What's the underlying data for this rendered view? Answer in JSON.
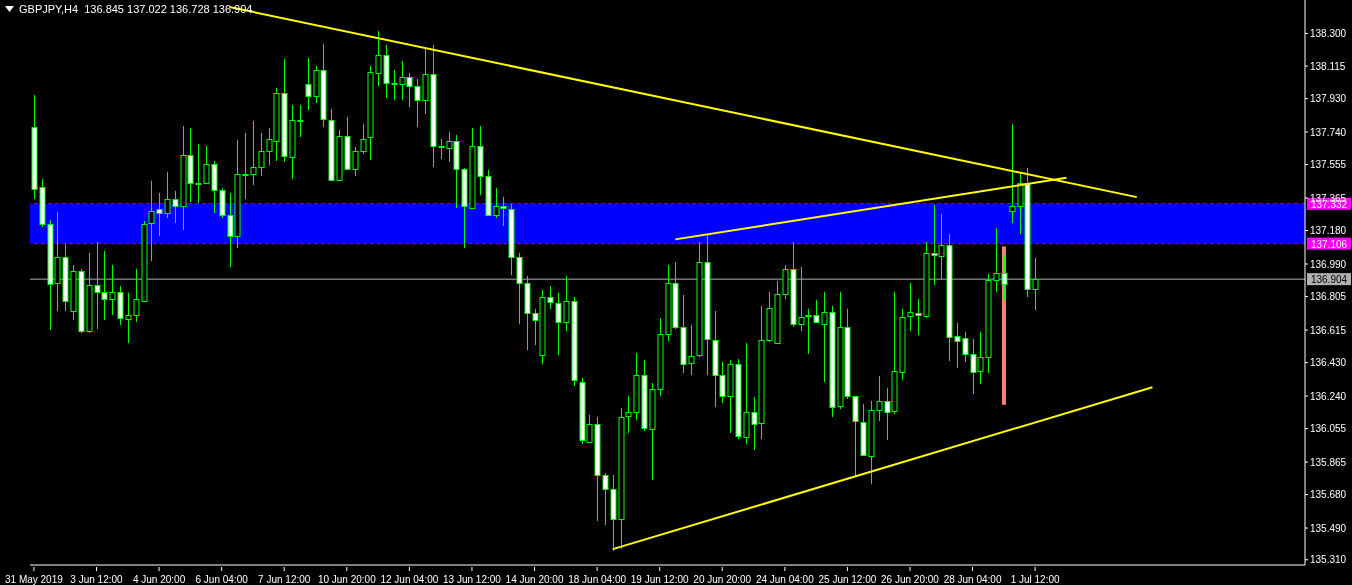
{
  "chart_data": {
    "type": "candlestick",
    "title": "GBPJPY,H4  136.845 137.022 136.728 136.904",
    "color": "#00ff00",
    "categories": [
      "31 May 2019",
      null,
      null,
      null,
      null,
      null,
      null,
      null,
      "3 Jun 12:00",
      null,
      null,
      null,
      null,
      null,
      null,
      null,
      "4 Jun 20:00",
      null,
      null,
      null,
      null,
      null,
      null,
      null,
      "6 Jun 04:00",
      null,
      null,
      null,
      null,
      null,
      null,
      null,
      "7 Jun 12:00",
      null,
      null,
      null,
      null,
      null,
      null,
      null,
      "10 Jun 20:00",
      null,
      null,
      null,
      null,
      null,
      null,
      null,
      "12 Jun 04:00",
      null,
      null,
      null,
      null,
      null,
      null,
      null,
      "13 Jun 12:00",
      null,
      null,
      null,
      null,
      null,
      null,
      null,
      "14 Jun 20:00",
      null,
      null,
      null,
      null,
      null,
      null,
      null,
      "18 Jun 04:00",
      null,
      null,
      null,
      null,
      null,
      null,
      null,
      "19 Jun 12:00",
      null,
      null,
      null,
      null,
      null,
      null,
      null,
      "20 Jun 20:00",
      null,
      null,
      null,
      null,
      null,
      null,
      null,
      "24 Jun 04:00",
      null,
      null,
      null,
      null,
      null,
      null,
      null,
      "25 Jun 12:00",
      null,
      null,
      null,
      null,
      null,
      null,
      null,
      "26 Jun 20:00",
      null,
      null,
      null,
      null,
      null,
      null,
      null,
      "28 Jun 04:00",
      null,
      null,
      null,
      null,
      null,
      null,
      null,
      "1 Jul 12:00",
      null,
      null,
      null,
      null,
      null,
      null,
      null,
      null,
      null,
      null,
      null,
      null,
      null,
      null,
      null,
      null,
      null,
      null,
      null,
      null,
      null,
      null,
      null,
      null,
      null,
      null,
      null,
      null,
      null,
      null,
      null,
      null,
      null,
      null
    ],
    "ohlc": [
      [
        137.77,
        137.95,
        137.36,
        137.42
      ],
      [
        137.43,
        137.47,
        137.2,
        137.22
      ],
      [
        137.22,
        137.24,
        136.62,
        136.88
      ],
      [
        136.88,
        137.28,
        136.72,
        137.03
      ],
      [
        137.03,
        137.1,
        136.72,
        136.78
      ],
      [
        136.72,
        136.98,
        136.67,
        136.95
      ],
      [
        136.95,
        136.96,
        136.6,
        136.61
      ],
      [
        136.61,
        137.05,
        136.6,
        136.87
      ],
      [
        136.87,
        137.11,
        136.62,
        136.83
      ],
      [
        136.83,
        137.06,
        136.67,
        136.79
      ],
      [
        136.79,
        136.98,
        136.7,
        136.83
      ],
      [
        136.83,
        136.86,
        136.64,
        136.68
      ],
      [
        136.68,
        136.82,
        136.54,
        136.7
      ],
      [
        136.7,
        136.96,
        136.66,
        136.79
      ],
      [
        136.78,
        137.23,
        136.77,
        137.22
      ],
      [
        137.22,
        137.46,
        137.01,
        137.29
      ],
      [
        137.3,
        137.39,
        137.15,
        137.28
      ],
      [
        137.28,
        137.51,
        137.25,
        137.36
      ],
      [
        137.36,
        137.4,
        137.22,
        137.32
      ],
      [
        137.32,
        137.77,
        137.18,
        137.61
      ],
      [
        137.61,
        137.76,
        137.34,
        137.45
      ],
      [
        137.45,
        137.67,
        137.34,
        137.45
      ],
      [
        137.45,
        137.66,
        137.45,
        137.56
      ],
      [
        137.56,
        137.57,
        137.28,
        137.41
      ],
      [
        137.41,
        137.42,
        137.25,
        137.27
      ],
      [
        137.27,
        137.39,
        136.97,
        137.15
      ],
      [
        137.15,
        137.69,
        137.08,
        137.5
      ],
      [
        137.5,
        137.73,
        137.36,
        137.5
      ],
      [
        137.5,
        137.8,
        137.44,
        137.54
      ],
      [
        137.54,
        137.73,
        137.49,
        137.63
      ],
      [
        137.63,
        137.76,
        137.55,
        137.7
      ],
      [
        137.69,
        137.99,
        137.58,
        137.96
      ],
      [
        137.96,
        138.15,
        137.57,
        137.6
      ],
      [
        137.6,
        137.89,
        137.47,
        137.81
      ],
      [
        137.81,
        137.89,
        137.71,
        137.81
      ],
      [
        138.01,
        138.16,
        137.87,
        137.94
      ],
      [
        137.94,
        138.11,
        137.9,
        138.09
      ],
      [
        138.09,
        138.24,
        137.77,
        137.81
      ],
      [
        137.81,
        137.87,
        137.47,
        137.47
      ],
      [
        137.47,
        137.75,
        137.47,
        137.72
      ],
      [
        137.72,
        137.82,
        137.52,
        137.53
      ],
      [
        137.53,
        137.65,
        137.49,
        137.63
      ],
      [
        137.63,
        137.78,
        137.61,
        137.7
      ],
      [
        137.71,
        138.11,
        137.58,
        138.08
      ],
      [
        138.08,
        138.31,
        138.0,
        138.18
      ],
      [
        138.18,
        138.23,
        137.93,
        138.02
      ],
      [
        138.02,
        138.09,
        137.92,
        138.02
      ],
      [
        138.01,
        138.14,
        137.92,
        138.05
      ],
      [
        138.05,
        138.07,
        137.88,
        138.0
      ],
      [
        138.0,
        138.04,
        137.77,
        137.92
      ],
      [
        137.92,
        138.22,
        137.84,
        138.07
      ],
      [
        138.07,
        138.23,
        137.54,
        137.66
      ],
      [
        137.66,
        137.7,
        137.59,
        137.66
      ],
      [
        137.65,
        137.74,
        137.57,
        137.69
      ],
      [
        137.69,
        137.72,
        137.31,
        137.53
      ],
      [
        137.53,
        137.53,
        137.08,
        137.32
      ],
      [
        137.31,
        137.76,
        137.31,
        137.66
      ],
      [
        137.66,
        137.77,
        137.38,
        137.49
      ],
      [
        137.49,
        137.52,
        137.27,
        137.27
      ],
      [
        137.27,
        137.42,
        137.25,
        137.32
      ],
      [
        137.32,
        137.37,
        137.21,
        137.31
      ],
      [
        137.3,
        137.33,
        136.93,
        137.03
      ],
      [
        137.03,
        137.05,
        136.65,
        136.88
      ],
      [
        136.88,
        136.92,
        136.5,
        136.71
      ],
      [
        136.71,
        136.73,
        136.53,
        136.67
      ],
      [
        136.47,
        136.84,
        136.42,
        136.8
      ],
      [
        136.8,
        136.86,
        136.73,
        136.77
      ],
      [
        136.77,
        136.82,
        136.47,
        136.66
      ],
      [
        136.66,
        136.92,
        136.61,
        136.78
      ],
      [
        136.78,
        136.8,
        136.3,
        136.33
      ],
      [
        136.32,
        136.34,
        135.97,
        135.99
      ],
      [
        135.98,
        136.13,
        135.98,
        136.08
      ],
      [
        136.08,
        136.12,
        135.53,
        135.79
      ],
      [
        135.79,
        135.8,
        135.51,
        135.71
      ],
      [
        135.71,
        135.79,
        135.36,
        135.54
      ],
      [
        135.54,
        136.17,
        135.37,
        136.12
      ],
      [
        136.13,
        136.24,
        136.03,
        136.15
      ],
      [
        136.15,
        136.48,
        136.1,
        136.36
      ],
      [
        136.36,
        136.44,
        136.04,
        136.06
      ],
      [
        136.05,
        136.31,
        135.76,
        136.28
      ],
      [
        136.28,
        136.68,
        136.24,
        136.59
      ],
      [
        136.59,
        136.98,
        136.55,
        136.88
      ],
      [
        136.88,
        137.0,
        136.62,
        136.63
      ],
      [
        136.63,
        136.81,
        136.37,
        136.42
      ],
      [
        136.43,
        136.64,
        136.36,
        136.47
      ],
      [
        136.47,
        137.11,
        136.46,
        137.0
      ],
      [
        137.0,
        137.16,
        136.36,
        136.56
      ],
      [
        136.56,
        136.72,
        136.18,
        136.36
      ],
      [
        136.36,
        136.43,
        136.2,
        136.24
      ],
      [
        136.24,
        136.44,
        136.03,
        136.42
      ],
      [
        136.42,
        136.45,
        136.0,
        136.01
      ],
      [
        136.01,
        136.54,
        135.97,
        136.15
      ],
      [
        136.15,
        136.23,
        135.93,
        136.08
      ],
      [
        136.09,
        136.75,
        136.0,
        136.56
      ],
      [
        136.56,
        136.83,
        136.55,
        136.74
      ],
      [
        136.54,
        136.89,
        136.54,
        136.82
      ],
      [
        136.82,
        136.98,
        136.79,
        136.96
      ],
      [
        136.96,
        137.11,
        136.63,
        136.65
      ],
      [
        136.65,
        136.97,
        136.61,
        136.69
      ],
      [
        136.7,
        136.73,
        136.48,
        136.7
      ],
      [
        136.7,
        136.78,
        136.65,
        136.66
      ],
      [
        136.65,
        136.83,
        136.32,
        136.72
      ],
      [
        136.72,
        136.75,
        136.12,
        136.18
      ],
      [
        136.18,
        136.83,
        136.17,
        136.63
      ],
      [
        136.63,
        136.73,
        136.22,
        136.24
      ],
      [
        136.24,
        136.24,
        135.79,
        136.1
      ],
      [
        136.09,
        136.19,
        135.9,
        135.9
      ],
      [
        135.9,
        136.21,
        135.74,
        136.16
      ],
      [
        136.16,
        136.35,
        136.1,
        136.21
      ],
      [
        136.21,
        136.28,
        135.99,
        136.15
      ],
      [
        136.15,
        136.83,
        136.14,
        136.38
      ],
      [
        136.38,
        136.73,
        136.33,
        136.69
      ],
      [
        136.7,
        136.88,
        136.61,
        136.72
      ],
      [
        136.71,
        136.79,
        136.59,
        136.7
      ],
      [
        136.69,
        137.11,
        136.68,
        137.05
      ],
      [
        137.05,
        137.32,
        136.87,
        137.04
      ],
      [
        137.04,
        137.27,
        136.9,
        137.1
      ],
      [
        137.1,
        137.16,
        136.44,
        136.58
      ],
      [
        136.58,
        136.65,
        136.4,
        136.55
      ],
      [
        136.57,
        136.6,
        136.43,
        136.48
      ],
      [
        136.48,
        136.56,
        136.25,
        136.38
      ],
      [
        136.38,
        136.6,
        136.31,
        136.46
      ],
      [
        136.46,
        136.93,
        136.37,
        136.9
      ],
      [
        136.9,
        137.19,
        136.83,
        136.94
      ],
      [
        136.94,
        137.04,
        136.79,
        136.88
      ],
      [
        137.29,
        137.78,
        137.22,
        137.32
      ],
      [
        137.32,
        137.51,
        137.16,
        137.45
      ],
      [
        137.45,
        137.53,
        136.8,
        136.85
      ],
      [
        136.845,
        137.022,
        136.728,
        136.904
      ],
      null,
      null,
      null,
      null,
      null,
      null,
      null,
      null,
      null,
      null,
      null,
      null,
      null,
      null,
      null,
      null,
      null,
      null,
      null,
      null,
      null,
      null,
      null,
      null,
      null,
      null,
      null,
      null,
      null,
      null,
      null,
      null,
      null,
      null
    ],
    "series": [
      {
        "type": "line",
        "color": "#ffff00",
        "values": [
          null,
          null,
          null,
          null,
          null,
          null,
          null,
          null,
          null,
          null,
          null,
          null,
          null,
          null,
          null,
          null,
          null,
          null,
          null,
          null,
          null,
          null,
          null,
          null,
          null,
          138.45,
          null,
          null,
          null,
          null,
          null,
          null,
          null,
          null,
          null,
          null,
          null,
          null,
          null,
          null,
          null,
          null,
          null,
          null,
          null,
          null,
          null,
          null,
          null,
          null,
          null,
          null,
          null,
          null,
          null,
          null,
          null,
          null,
          null,
          null,
          null,
          null,
          null,
          null,
          null,
          null,
          null,
          null,
          null,
          null,
          null,
          null,
          null,
          null,
          null,
          null,
          null,
          null,
          null,
          null,
          null,
          null,
          null,
          null,
          null,
          null,
          null,
          null,
          null,
          null,
          null,
          null,
          null,
          null,
          null,
          null,
          null,
          null,
          null,
          null,
          null,
          null,
          null,
          null,
          null,
          null,
          null,
          null,
          null,
          null,
          null,
          null,
          null,
          null,
          null,
          null,
          null,
          null,
          null,
          null,
          null,
          null,
          null,
          null,
          null,
          null,
          null,
          null,
          null,
          null,
          null,
          null,
          null,
          null,
          null,
          null,
          null,
          null,
          null,
          null,
          null,
          137.37,
          null,
          null,
          null,
          null,
          null,
          null,
          null,
          null,
          null,
          null,
          null,
          null,
          null,
          null,
          null,
          null,
          null,
          null,
          null,
          null,
          null
        ]
      },
      {
        "type": "line",
        "color": "#ffff00",
        "values": [
          null,
          null,
          null,
          null,
          null,
          null,
          null,
          null,
          null,
          null,
          null,
          null,
          null,
          null,
          null,
          null,
          null,
          null,
          null,
          null,
          null,
          null,
          null,
          null,
          null,
          null,
          null,
          null,
          null,
          null,
          null,
          null,
          null,
          null,
          null,
          null,
          null,
          null,
          null,
          null,
          null,
          null,
          null,
          null,
          null,
          null,
          null,
          null,
          null,
          null,
          null,
          null,
          null,
          null,
          null,
          null,
          null,
          null,
          null,
          null,
          null,
          null,
          null,
          null,
          null,
          null,
          null,
          null,
          null,
          null,
          null,
          null,
          null,
          null,
          null,
          null,
          null,
          null,
          null,
          null,
          null,
          null,
          137.13,
          null,
          null,
          null,
          null,
          null,
          null,
          null,
          null,
          null,
          null,
          null,
          null,
          null,
          null,
          null,
          null,
          null,
          null,
          null,
          null,
          null,
          null,
          null,
          null,
          null,
          null,
          null,
          null,
          null,
          null,
          null,
          null,
          null,
          null,
          null,
          null,
          null,
          null,
          null,
          null,
          null,
          null,
          null,
          null,
          null,
          null,
          null,
          null,
          null,
          137.48,
          null,
          null,
          null,
          null,
          null,
          null,
          null,
          null,
          null,
          null,
          null,
          null,
          null,
          null,
          null,
          null,
          null,
          null,
          null,
          null,
          null,
          null,
          null,
          null,
          null,
          null,
          null,
          null,
          null,
          null
        ]
      },
      {
        "type": "line",
        "color": "#ffff00",
        "values": [
          null,
          null,
          null,
          null,
          null,
          null,
          null,
          null,
          null,
          null,
          null,
          null,
          null,
          null,
          null,
          null,
          null,
          null,
          null,
          null,
          null,
          null,
          null,
          null,
          null,
          null,
          null,
          null,
          null,
          null,
          null,
          null,
          null,
          null,
          null,
          null,
          null,
          null,
          null,
          null,
          null,
          null,
          null,
          null,
          null,
          null,
          null,
          null,
          null,
          null,
          null,
          null,
          null,
          null,
          null,
          null,
          null,
          null,
          null,
          null,
          null,
          null,
          null,
          null,
          null,
          null,
          null,
          null,
          null,
          null,
          null,
          null,
          null,
          null,
          135.37,
          null,
          null,
          null,
          null,
          null,
          null,
          null,
          null,
          null,
          null,
          null,
          null,
          null,
          null,
          null,
          null,
          null,
          null,
          null,
          null,
          null,
          null,
          null,
          null,
          null,
          null,
          null,
          null,
          null,
          null,
          null,
          null,
          null,
          null,
          null,
          null,
          null,
          null,
          null,
          null,
          null,
          null,
          null,
          null,
          null,
          null,
          null,
          null,
          null,
          null,
          null,
          null,
          null,
          null,
          null,
          null,
          null,
          null,
          null,
          null,
          null,
          null,
          null,
          null,
          null,
          null,
          null,
          null,
          136.29,
          null,
          null,
          null,
          null,
          null,
          null,
          null,
          null,
          null,
          null,
          null,
          null,
          null,
          null,
          null,
          null,
          null,
          null,
          null
        ]
      },
      {
        "type": "bar",
        "color": "#fa8072",
        "values": [
          null,
          null,
          null,
          null,
          null,
          null,
          null,
          null,
          null,
          null,
          null,
          null,
          null,
          null,
          null,
          null,
          null,
          null,
          null,
          null,
          null,
          null,
          null,
          null,
          null,
          null,
          null,
          null,
          null,
          null,
          null,
          null,
          null,
          null,
          null,
          null,
          null,
          null,
          null,
          null,
          null,
          null,
          null,
          null,
          null,
          null,
          null,
          null,
          null,
          null,
          null,
          null,
          null,
          null,
          null,
          null,
          null,
          null,
          null,
          null,
          null,
          null,
          null,
          null,
          null,
          null,
          null,
          null,
          null,
          null,
          null,
          null,
          null,
          null,
          null,
          null,
          null,
          null,
          null,
          null,
          null,
          null,
          null,
          null,
          null,
          null,
          null,
          null,
          null,
          null,
          null,
          null,
          null,
          null,
          null,
          null,
          null,
          null,
          null,
          null,
          null,
          null,
          null,
          null,
          null,
          null,
          null,
          null,
          null,
          null,
          null,
          null,
          null,
          null,
          null,
          null,
          null,
          null,
          null,
          null,
          null,
          null,
          null,
          null,
          0.9,
          null,
          null,
          null,
          null,
          null,
          null,
          null,
          null,
          null,
          null,
          null,
          null,
          null,
          null,
          null,
          null,
          null,
          null,
          null,
          null,
          null,
          null,
          null,
          null,
          null,
          null,
          null,
          null,
          null,
          null,
          null,
          null,
          null,
          null,
          null,
          null,
          null,
          null
        ],
        "base": [
          null,
          null,
          null,
          null,
          null,
          null,
          null,
          null,
          null,
          null,
          null,
          null,
          null,
          null,
          null,
          null,
          null,
          null,
          null,
          null,
          null,
          null,
          null,
          null,
          null,
          null,
          null,
          null,
          null,
          null,
          null,
          null,
          null,
          null,
          null,
          null,
          null,
          null,
          null,
          null,
          null,
          null,
          null,
          null,
          null,
          null,
          null,
          null,
          null,
          null,
          null,
          null,
          null,
          null,
          null,
          null,
          null,
          null,
          null,
          null,
          null,
          null,
          null,
          null,
          null,
          null,
          null,
          null,
          null,
          null,
          null,
          null,
          null,
          null,
          null,
          null,
          null,
          null,
          null,
          null,
          null,
          null,
          null,
          null,
          null,
          null,
          null,
          null,
          null,
          null,
          null,
          null,
          null,
          null,
          null,
          null,
          null,
          null,
          null,
          null,
          null,
          null,
          null,
          null,
          null,
          null,
          null,
          null,
          null,
          null,
          null,
          null,
          null,
          null,
          null,
          null,
          null,
          null,
          null,
          null,
          null,
          null,
          null,
          null,
          136.19,
          null,
          null,
          null,
          null,
          null,
          null,
          null,
          null,
          null,
          null,
          null,
          null,
          null,
          null,
          null,
          null,
          null,
          null,
          null,
          null,
          null,
          null,
          null,
          null,
          null,
          null,
          null,
          null,
          null,
          null,
          null,
          null,
          null,
          null,
          null,
          null,
          null,
          null
        ]
      }
    ],
    "ylim": [
      135.28,
      138.49
    ],
    "yticks": [
      {
        "value": 138.3,
        "label": "138.300"
      },
      {
        "value": 138.115,
        "label": "138.115"
      },
      {
        "value": 137.93,
        "label": "137.930"
      },
      {
        "value": 137.74,
        "label": "137.740"
      },
      {
        "value": 137.555,
        "label": "137.555"
      },
      {
        "value": 137.365,
        "label": "137.365"
      },
      {
        "value": 137.18,
        "label": "137.180"
      },
      {
        "value": 136.99,
        "label": "136.990"
      },
      {
        "value": 136.805,
        "label": "136.805"
      },
      {
        "value": 136.615,
        "label": "136.615"
      },
      {
        "value": 136.43,
        "label": "136.430"
      },
      {
        "value": 136.24,
        "label": "136.240"
      },
      {
        "value": 136.055,
        "label": "136.055"
      },
      {
        "value": 135.865,
        "label": "135.865"
      },
      {
        "value": 135.68,
        "label": "135.680"
      },
      {
        "value": 135.49,
        "label": "135.490"
      },
      {
        "value": 135.31,
        "label": "135.310"
      }
    ],
    "ref_lines": [
      {
        "axis": "y",
        "value": 137.332,
        "label": "137.332",
        "color": "#ff00ff",
        "line_style": "dashed"
      },
      {
        "axis": "y",
        "value": 137.106,
        "label": "137.106",
        "color": "#ff00ff",
        "line_style": "dashed"
      },
      {
        "axis": "y",
        "value": 136.904,
        "label": "136.904",
        "color": "#b0b0b0",
        "line_style": "solid"
      }
    ],
    "bands": [
      {
        "axis": "y",
        "from": 137.106,
        "to": 137.332,
        "color": "#0000ff"
      }
    ]
  }
}
